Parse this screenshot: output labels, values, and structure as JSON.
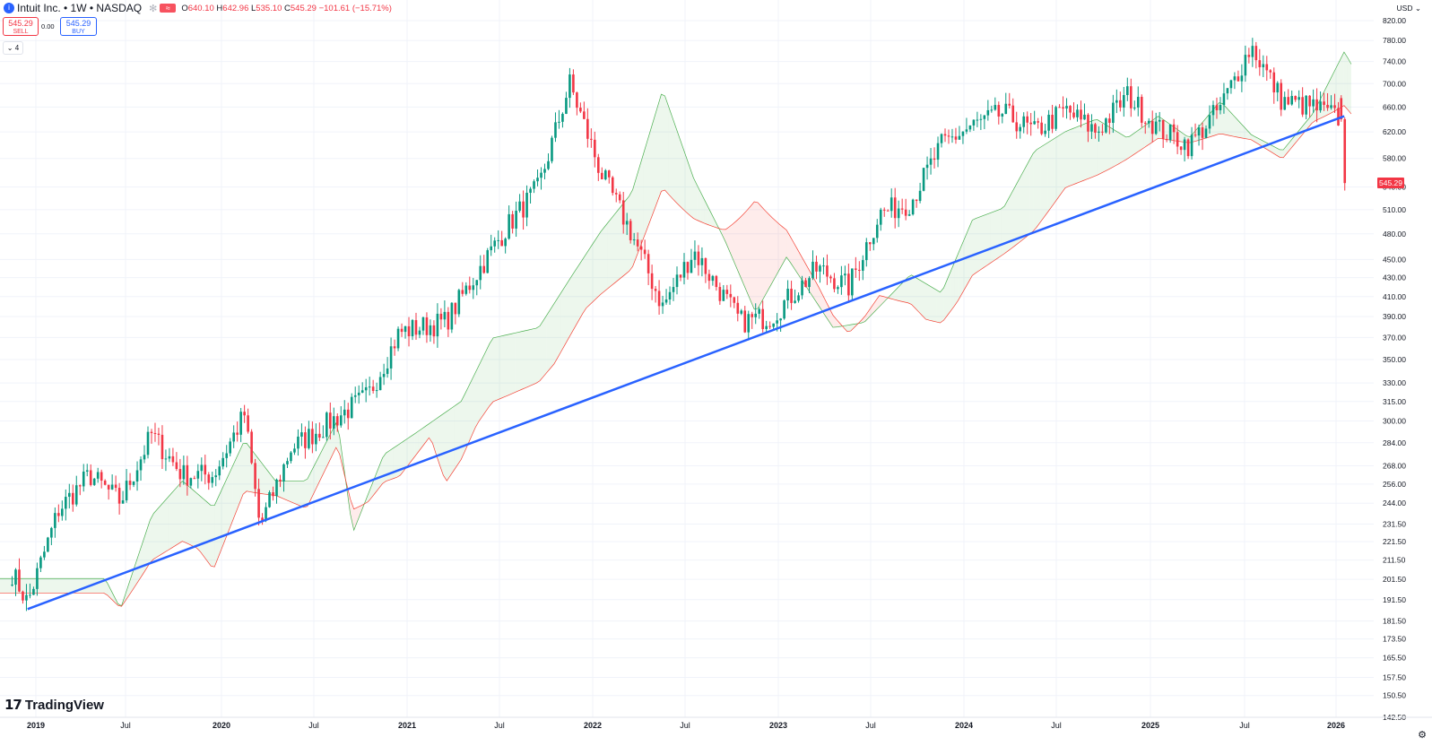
{
  "header": {
    "symbol": "Intuit Inc. • 1W • NASDAQ",
    "logo_icon": "intuit-logo",
    "ohlc": {
      "o_label": "O",
      "o": "640.10",
      "h_label": "H",
      "h": "642.96",
      "l_label": "L",
      "l": "535.10",
      "c_label": "C",
      "c": "545.29",
      "change": "−101.61 (−15.71%)"
    },
    "sell": {
      "price": "545.29",
      "label": "SELL"
    },
    "buy": {
      "price": "545.29",
      "label": "BUY"
    },
    "spread": "0.00",
    "indicators_toggle": "4",
    "currency": "USD"
  },
  "branding": "TradingView",
  "last_price_label": "545.29",
  "colors": {
    "up": "#089981",
    "down": "#f23645",
    "trend": "#2962ff",
    "cloud_up": "#4caf50",
    "cloud_down": "#f44336"
  },
  "chart_data": {
    "type": "candlestick",
    "symbol": "INTU",
    "interval": "1W",
    "y_scale": "log",
    "ylim": [
      142.5,
      835
    ],
    "x_tick_labels": [
      "2019",
      "Jul",
      "2020",
      "Jul",
      "2021",
      "Jul",
      "2022",
      "Jul",
      "2023",
      "Jul",
      "2024",
      "Jul",
      "2025",
      "Jul",
      "2026"
    ],
    "y_tick_labels": [
      820,
      780,
      740,
      700,
      660,
      620,
      580,
      540,
      510,
      480,
      450,
      430,
      410,
      390,
      370,
      350,
      330,
      315,
      300,
      284,
      268,
      256,
      244,
      231.5,
      221.5,
      211.5,
      201.5,
      191.5,
      181.5,
      173.5,
      165.5,
      157.5,
      150.5,
      142.5
    ],
    "price_series_approx": [
      [
        "2018-11",
        205
      ],
      [
        "2018-12",
        190
      ],
      [
        "2019-02",
        240
      ],
      [
        "2019-04",
        262
      ],
      [
        "2019-06",
        245
      ],
      [
        "2019-08",
        290
      ],
      [
        "2019-10",
        262
      ],
      [
        "2019-12",
        262
      ],
      [
        "2020-02",
        305
      ],
      [
        "2020-03",
        230
      ],
      [
        "2020-05",
        280
      ],
      [
        "2020-07",
        295
      ],
      [
        "2020-10",
        320
      ],
      [
        "2020-12",
        375
      ],
      [
        "2021-03",
        385
      ],
      [
        "2021-05",
        435
      ],
      [
        "2021-07",
        490
      ],
      [
        "2021-09",
        540
      ],
      [
        "2021-11",
        700
      ],
      [
        "2022-01",
        560
      ],
      [
        "2022-03",
        480
      ],
      [
        "2022-05",
        400
      ],
      [
        "2022-07",
        460
      ],
      [
        "2022-10",
        385
      ],
      [
        "2022-12",
        390
      ],
      [
        "2023-03",
        440
      ],
      [
        "2023-05",
        420
      ],
      [
        "2023-07",
        505
      ],
      [
        "2023-09",
        520
      ],
      [
        "2023-11",
        600
      ],
      [
        "2024-01",
        630
      ],
      [
        "2024-03",
        650
      ],
      [
        "2024-05",
        620
      ],
      [
        "2024-07",
        655
      ],
      [
        "2024-09",
        620
      ],
      [
        "2024-11",
        680
      ],
      [
        "2025-01",
        625
      ],
      [
        "2025-03",
        600
      ],
      [
        "2025-05",
        660
      ],
      [
        "2025-07",
        770
      ],
      [
        "2025-09",
        670
      ],
      [
        "2025-11",
        660
      ],
      [
        "2026-01-09",
        640
      ],
      [
        "2026-01-16",
        545.29
      ]
    ],
    "last_candle": {
      "open": 640.1,
      "high": 642.96,
      "low": 535.1,
      "close": 545.29
    },
    "trendline": {
      "from": [
        "2018-12",
        187
      ],
      "to": [
        "2026-01",
        645
      ]
    },
    "indicator": "Ichimoku Cloud"
  }
}
